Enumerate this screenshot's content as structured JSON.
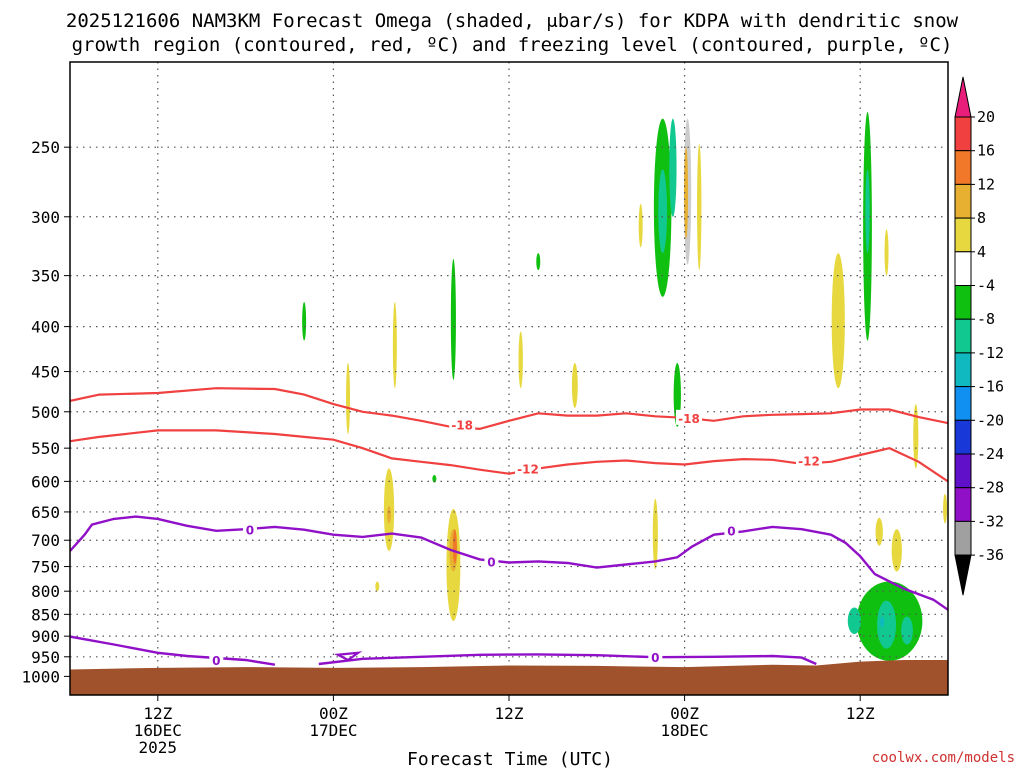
{
  "title_line1": "2025121606 NAM3KM Forecast Omega (shaded, μbar/s) for KDPA with dendritic snow",
  "title_line2": "growth region (contoured, red, ºC) and freezing level (contoured, purple, ºC)",
  "credit": "coolwx.com/models",
  "colors": {
    "dgz_contour": "#f04040",
    "freezing_contour": "#9010c8",
    "ground": "#a0522d",
    "grid": "#555555"
  },
  "chart_data": {
    "type": "heatmap",
    "y_scale": "log-pressure",
    "y_ticks": [
      "250",
      "300",
      "350",
      "400",
      "450",
      "500",
      "550",
      "600",
      "650",
      "700",
      "750",
      "800",
      "850",
      "900",
      "950",
      "1000"
    ],
    "y_tick_values": [
      250,
      300,
      350,
      400,
      450,
      500,
      550,
      600,
      650,
      700,
      750,
      800,
      850,
      900,
      950,
      1000
    ],
    "y_range": [
      200,
      1050
    ],
    "x_range_hours": [
      0,
      60
    ],
    "x_ticks": [
      {
        "hour": 6,
        "l1": "12Z",
        "l2": "16DEC",
        "l3": "2025"
      },
      {
        "hour": 18,
        "l1": "00Z",
        "l2": "17DEC",
        "l3": ""
      },
      {
        "hour": 30,
        "l1": "12Z",
        "l2": "",
        "l3": ""
      },
      {
        "hour": 42,
        "l1": "00Z",
        "l2": "18DEC",
        "l3": ""
      },
      {
        "hour": 54,
        "l1": "12Z",
        "l2": "",
        "l3": ""
      }
    ],
    "xlabel": "Forecast Time (UTC)",
    "colorbar": {
      "ticks": [
        "20",
        "16",
        "12",
        "8",
        "4",
        "-4",
        "-8",
        "-12",
        "-16",
        "-20",
        "-24",
        "-28",
        "-32",
        "-36"
      ],
      "colors": [
        "#e81e7a",
        "#f04040",
        "#f07828",
        "#e8b030",
        "#e8d840",
        "#ffffff",
        "#10c010",
        "#10c890",
        "#10b8c0",
        "#1090f0",
        "#1838d8",
        "#6010c8",
        "#9010c8",
        "#a0a0a0",
        "#000000"
      ]
    },
    "contour_labels": {
      "dgz": [
        "-18",
        "-12",
        "-18",
        "-12"
      ],
      "freezing": [
        "0",
        "0",
        "0",
        "0",
        "0"
      ]
    },
    "dgz_contours": [
      {
        "level": -18,
        "points": [
          [
            0,
            486
          ],
          [
            2,
            478
          ],
          [
            6,
            476
          ],
          [
            10,
            470
          ],
          [
            14,
            471
          ],
          [
            16,
            478
          ],
          [
            18,
            490
          ],
          [
            20,
            500
          ],
          [
            22,
            505
          ],
          [
            24,
            512
          ],
          [
            26,
            520
          ],
          [
            28,
            523
          ],
          [
            30,
            512
          ],
          [
            32,
            502
          ],
          [
            34,
            505
          ],
          [
            36,
            505
          ],
          [
            38,
            502
          ],
          [
            40,
            506
          ],
          [
            42,
            508
          ],
          [
            44,
            512
          ],
          [
            46,
            506
          ],
          [
            48,
            504
          ],
          [
            50,
            503
          ],
          [
            52,
            502
          ],
          [
            54,
            497
          ],
          [
            56,
            497
          ],
          [
            58,
            507
          ],
          [
            60,
            515
          ]
        ]
      },
      {
        "level": -12,
        "points": [
          [
            0,
            540
          ],
          [
            2,
            534
          ],
          [
            6,
            525
          ],
          [
            10,
            525
          ],
          [
            14,
            530
          ],
          [
            16,
            534
          ],
          [
            18,
            538
          ],
          [
            20,
            550
          ],
          [
            22,
            565
          ],
          [
            24,
            570
          ],
          [
            26,
            575
          ],
          [
            28,
            582
          ],
          [
            30,
            588
          ],
          [
            32,
            580
          ],
          [
            34,
            574
          ],
          [
            36,
            570
          ],
          [
            38,
            568
          ],
          [
            40,
            572
          ],
          [
            42,
            574
          ],
          [
            44,
            569
          ],
          [
            46,
            566
          ],
          [
            48,
            567
          ],
          [
            50,
            573
          ],
          [
            52,
            570
          ],
          [
            54,
            560
          ],
          [
            56,
            550
          ],
          [
            58,
            570
          ],
          [
            60,
            600
          ]
        ]
      }
    ],
    "freezing_contours": [
      {
        "level": 0,
        "points": [
          [
            0,
            720
          ],
          [
            1,
            690
          ],
          [
            1.5,
            672
          ],
          [
            3,
            662
          ],
          [
            4.5,
            658
          ],
          [
            6,
            662
          ],
          [
            8,
            674
          ],
          [
            10,
            683
          ],
          [
            12,
            680
          ],
          [
            14,
            676
          ],
          [
            16,
            681
          ],
          [
            18,
            690
          ],
          [
            20,
            694
          ],
          [
            22,
            688
          ],
          [
            24,
            695
          ],
          [
            26,
            718
          ],
          [
            28,
            736
          ],
          [
            30,
            742
          ],
          [
            32,
            740
          ],
          [
            34,
            743
          ],
          [
            36,
            752
          ],
          [
            38,
            746
          ],
          [
            40,
            740
          ],
          [
            41.5,
            732
          ],
          [
            42.5,
            712
          ],
          [
            44,
            690
          ],
          [
            46,
            684
          ],
          [
            48,
            676
          ],
          [
            50,
            680
          ],
          [
            52,
            690
          ],
          [
            53,
            705
          ],
          [
            54,
            730
          ],
          [
            55,
            765
          ],
          [
            57,
            795
          ],
          [
            59,
            818
          ],
          [
            60,
            840
          ]
        ]
      },
      {
        "level": 0,
        "points": [
          [
            0,
            901
          ],
          [
            3,
            920
          ],
          [
            6,
            940
          ],
          [
            8,
            948
          ],
          [
            10,
            953
          ],
          [
            12,
            958
          ],
          [
            14,
            970
          ]
        ]
      },
      {
        "level": 0,
        "points": [
          [
            17,
            968
          ],
          [
            20,
            955
          ],
          [
            24,
            950
          ],
          [
            28,
            945
          ],
          [
            32,
            944
          ],
          [
            36,
            946
          ],
          [
            40,
            951
          ],
          [
            44,
            950
          ],
          [
            48,
            948
          ],
          [
            50,
            952
          ],
          [
            51,
            968
          ]
        ]
      }
    ],
    "omega_blobs": [
      {
        "hour": 40.5,
        "p0": 232,
        "p1": 370,
        "w": 1.2,
        "v": -8
      },
      {
        "hour": 40.5,
        "p0": 265,
        "p1": 330,
        "w": 0.6,
        "v": -12
      },
      {
        "hour": 41.2,
        "p0": 232,
        "p1": 300,
        "w": 0.5,
        "v": -12
      },
      {
        "hour": 42.2,
        "p0": 232,
        "p1": 340,
        "w": 0.5,
        "v": -4
      },
      {
        "hour": 43.0,
        "p0": 248,
        "p1": 345,
        "w": 0.3,
        "v": 4
      },
      {
        "hour": 42.1,
        "p0": 250,
        "p1": 318,
        "w": 0.2,
        "v": 8
      },
      {
        "hour": 54.5,
        "p0": 228,
        "p1": 415,
        "w": 0.6,
        "v": -8
      },
      {
        "hour": 54.5,
        "p0": 265,
        "p1": 330,
        "w": 0.3,
        "v": -12
      },
      {
        "hour": 55.8,
        "p0": 310,
        "p1": 350,
        "w": 0.15,
        "v": 4
      },
      {
        "hour": 52.5,
        "p0": 330,
        "p1": 470,
        "w": 0.9,
        "v": 4
      },
      {
        "hour": 26.2,
        "p0": 335,
        "p1": 460,
        "w": 0.35,
        "v": -8
      },
      {
        "hour": 32.0,
        "p0": 330,
        "p1": 345,
        "w": 0.12,
        "v": -8
      },
      {
        "hour": 39.0,
        "p0": 290,
        "p1": 325,
        "w": 0.12,
        "v": 4
      },
      {
        "hour": 16.0,
        "p0": 375,
        "p1": 415,
        "w": 0.25,
        "v": -8
      },
      {
        "hour": 22.2,
        "p0": 375,
        "p1": 470,
        "w": 0.25,
        "v": 4
      },
      {
        "hour": 30.8,
        "p0": 405,
        "p1": 470,
        "w": 0.3,
        "v": 4
      },
      {
        "hour": 19.0,
        "p0": 440,
        "p1": 530,
        "w": 0.25,
        "v": 4
      },
      {
        "hour": 34.5,
        "p0": 440,
        "p1": 495,
        "w": 0.4,
        "v": 4
      },
      {
        "hour": 41.5,
        "p0": 440,
        "p1": 520,
        "w": 0.5,
        "v": -8
      },
      {
        "hour": 57.8,
        "p0": 490,
        "p1": 580,
        "w": 0.35,
        "v": 4
      },
      {
        "hour": 59.8,
        "p0": 620,
        "p1": 670,
        "w": 0.2,
        "v": 4
      },
      {
        "hour": 21.8,
        "p0": 580,
        "p1": 720,
        "w": 0.7,
        "v": 4
      },
      {
        "hour": 21.8,
        "p0": 640,
        "p1": 670,
        "w": 0.1,
        "v": 8
      },
      {
        "hour": 24.9,
        "p0": 590,
        "p1": 602,
        "w": 0.2,
        "v": -8
      },
      {
        "hour": 26.2,
        "p0": 645,
        "p1": 865,
        "w": 0.95,
        "v": 4
      },
      {
        "hour": 26.2,
        "p0": 680,
        "p1": 760,
        "w": 0.55,
        "v": 8
      },
      {
        "hour": 26.3,
        "p0": 680,
        "p1": 745,
        "w": 0.25,
        "v": 12
      },
      {
        "hour": 21.0,
        "p0": 780,
        "p1": 800,
        "w": 0.15,
        "v": 4
      },
      {
        "hour": 40.0,
        "p0": 628,
        "p1": 755,
        "w": 0.35,
        "v": 4
      },
      {
        "hour": 56.5,
        "p0": 680,
        "p1": 760,
        "w": 0.7,
        "v": 4
      },
      {
        "hour": 55.3,
        "p0": 660,
        "p1": 710,
        "w": 0.5,
        "v": 4
      },
      {
        "hour": 56.0,
        "p0": 780,
        "p1": 960,
        "w": 4.5,
        "v": -8
      },
      {
        "hour": 55.8,
        "p0": 820,
        "p1": 930,
        "w": 1.3,
        "v": -12
      },
      {
        "hour": 57.2,
        "p0": 855,
        "p1": 920,
        "w": 0.8,
        "v": -12
      },
      {
        "hour": 53.6,
        "p0": 835,
        "p1": 895,
        "w": 0.9,
        "v": -12
      },
      {
        "hour": 55.5,
        "p0": 855,
        "p1": 880,
        "w": 0.12,
        "v": -16
      }
    ],
    "ground": [
      [
        0,
        982
      ],
      [
        6,
        978
      ],
      [
        12,
        976
      ],
      [
        18,
        978
      ],
      [
        24,
        976
      ],
      [
        30,
        972
      ],
      [
        36,
        973
      ],
      [
        42,
        976
      ],
      [
        48,
        970
      ],
      [
        51,
        972
      ],
      [
        54,
        962
      ],
      [
        57,
        958
      ],
      [
        60,
        958
      ]
    ]
  }
}
